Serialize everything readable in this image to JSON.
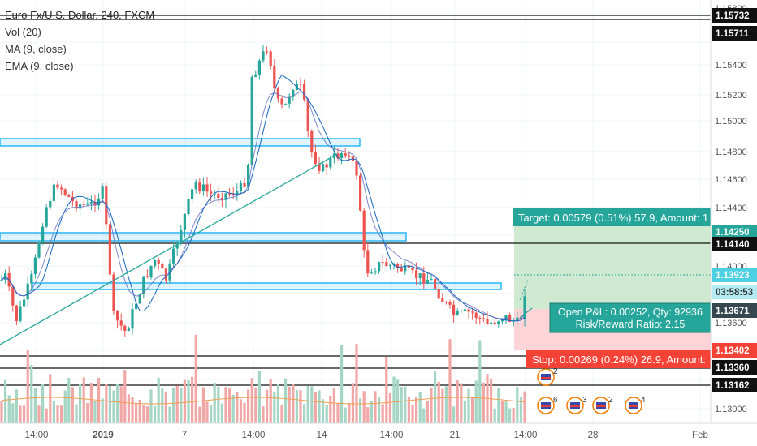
{
  "legend": {
    "title": "Euro Fx/U.S. Dollar, 240, FXCM",
    "vol": "Vol (20)",
    "ma": "MA (9, close)",
    "ema": "EMA (9, close)"
  },
  "price_axis": {
    "ticks": [
      "1.15800",
      "1.15400",
      "1.15200",
      "1.15000",
      "1.14800",
      "1.14600",
      "1.14400",
      "1.14000",
      "1.13600",
      "1.13000"
    ],
    "badges": [
      {
        "label": "1.15732",
        "kind": "black"
      },
      {
        "label": "1.15711",
        "kind": "black"
      },
      {
        "label": "1.14250",
        "kind": "green"
      },
      {
        "label": "1.14140",
        "kind": "black"
      },
      {
        "label": "1.13923",
        "kind": "cyan"
      },
      {
        "label": "03:58:53",
        "kind": "cyan-light"
      },
      {
        "label": "1.13671",
        "kind": "dark"
      },
      {
        "label": "1.13402",
        "kind": "red"
      },
      {
        "label": "1.13360",
        "kind": "black"
      },
      {
        "label": "1.13162",
        "kind": "black"
      }
    ]
  },
  "time_axis": {
    "labels": [
      "14:00",
      "2019",
      "7",
      "14:00",
      "14",
      "14:00",
      "21",
      "14:00",
      "28",
      "Feb"
    ]
  },
  "position": {
    "target_label": "Target: 0.00579 (0.51%) 57.9, Amount: 1",
    "stop_label": "Stop: 0.00269 (0.24%) 26.9, Amount:",
    "pnl_line1": "Open P&L: 0.00252, Qty: 92936",
    "pnl_line2": "Risk/Reward Ratio: 2.15"
  },
  "events": [
    {
      "badge": "2"
    },
    {
      "badge": "6"
    },
    {
      "badge": "3"
    },
    {
      "badge": "2"
    },
    {
      "badge": "4"
    }
  ],
  "colors": {
    "up": "#26a69a",
    "down": "#ef5350",
    "vol_up": "#a5d6c5",
    "vol_down": "#f2a7a7",
    "ma": "#1565c0",
    "ema": "#5c6bc0",
    "trend": "#26a69a",
    "zone": "#29b6f6",
    "target_bg": "#c8e6c9",
    "stop_bg": "#ffcdd2",
    "target_tag": "#26a69a",
    "stop_tag": "#f44336"
  }
}
